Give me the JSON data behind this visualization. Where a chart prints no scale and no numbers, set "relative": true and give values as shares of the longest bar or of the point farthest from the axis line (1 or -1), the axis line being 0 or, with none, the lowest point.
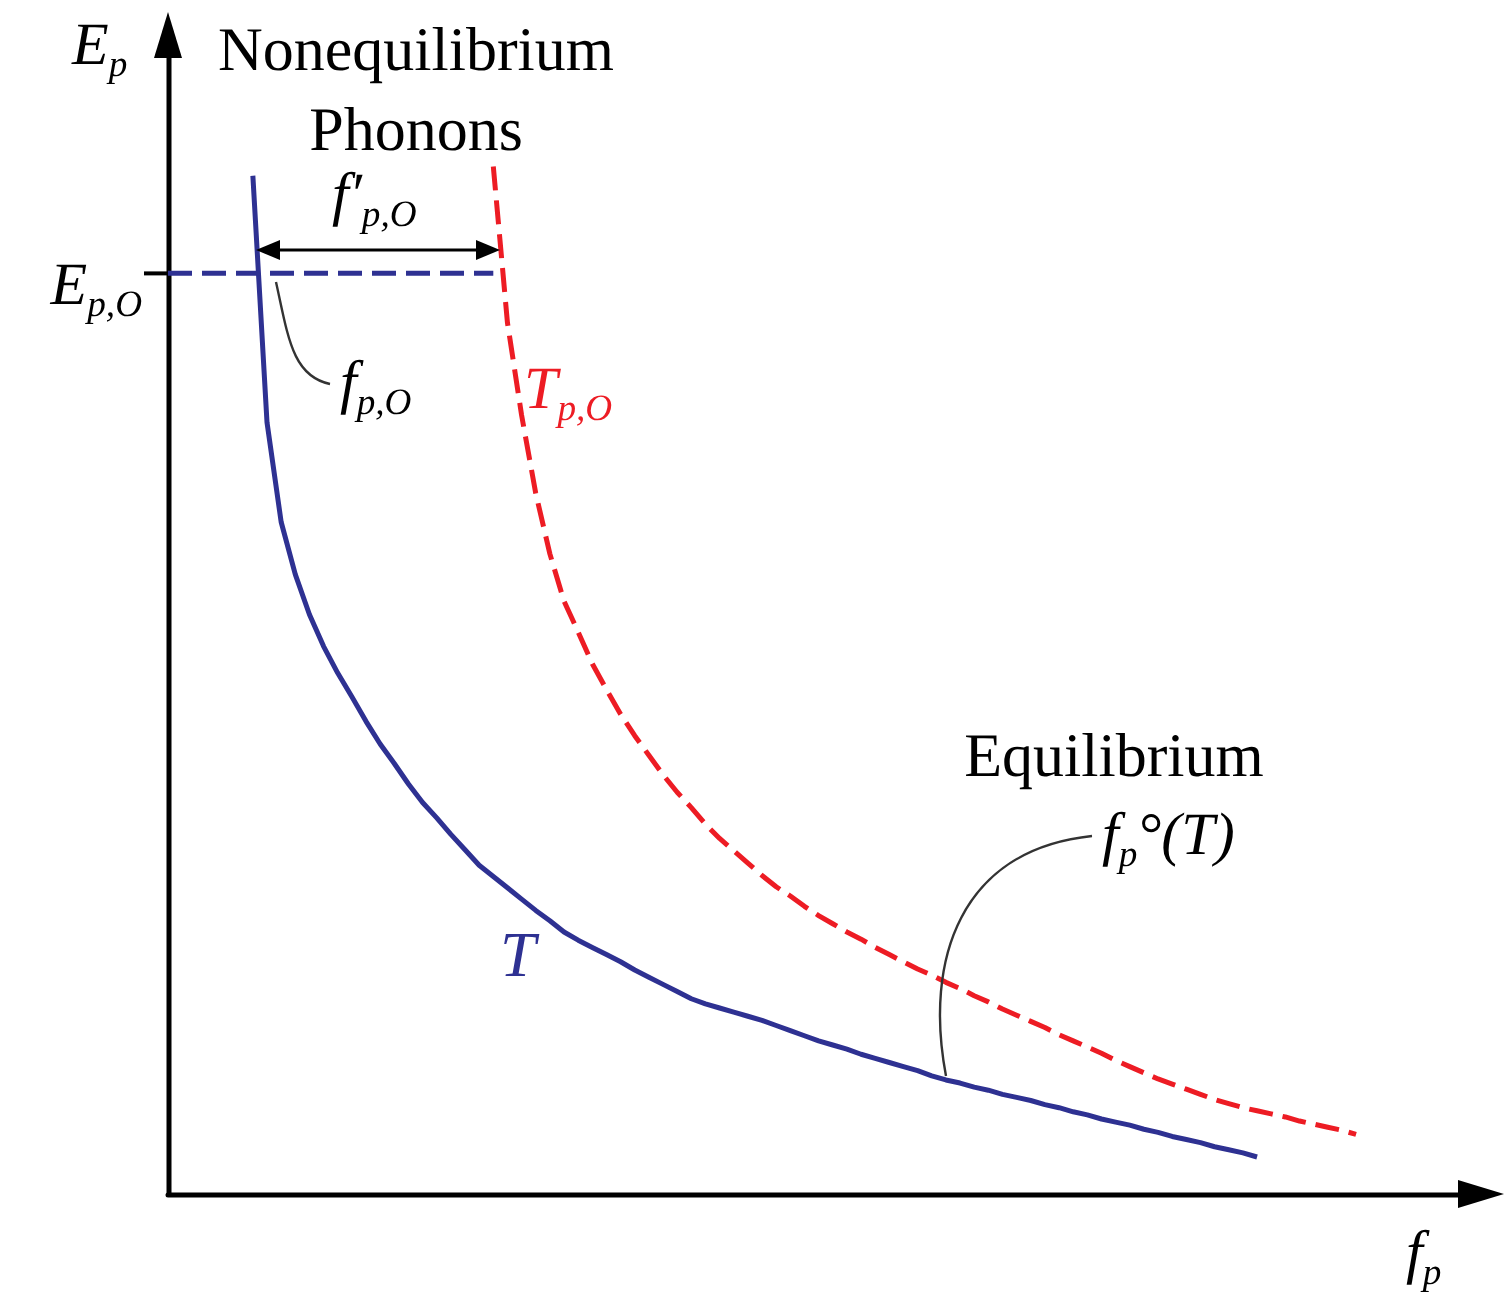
{
  "chart_data": {
    "type": "line",
    "relative": true,
    "marker": "none",
    "xlabel": "f$_{p}$",
    "ylabel": "E$_{p}$",
    "categories": [
      null,
      null,
      null,
      null,
      null,
      null,
      null,
      null,
      null,
      null,
      null,
      null,
      null,
      null,
      null,
      null,
      null,
      null,
      null,
      null,
      null,
      null,
      null,
      null,
      null,
      null,
      null,
      null,
      null,
      null,
      null,
      null,
      null,
      null,
      null,
      null,
      null,
      null,
      null,
      null,
      null,
      null,
      null,
      null,
      null,
      null,
      null,
      null,
      null,
      null,
      null,
      null,
      null,
      null,
      null,
      null,
      null,
      null,
      null,
      null,
      null,
      null,
      null,
      null,
      null,
      null,
      null,
      null,
      null,
      null,
      null,
      null,
      null,
      null,
      null,
      null,
      null,
      null,
      null,
      null,
      null,
      null,
      null,
      null,
      null
    ],
    "series": [
      {
        "name": "T",
        "color": "#2e3192",
        "values": [
          null,
          null,
          null,
          null,
          null,
          null,
          0.991,
          0.751,
          0.654,
          0.603,
          0.564,
          0.533,
          0.507,
          0.484,
          0.46,
          0.438,
          0.419,
          0.399,
          0.381,
          0.366,
          0.35,
          0.335,
          0.32,
          0.309,
          0.298,
          0.287,
          0.276,
          0.266,
          0.255,
          0.247,
          0.24,
          0.233,
          0.226,
          0.218,
          0.211,
          0.204,
          0.197,
          0.19,
          0.185,
          0.181,
          0.177,
          0.173,
          0.169,
          0.164,
          0.159,
          0.154,
          0.149,
          0.145,
          0.141,
          0.136,
          0.132,
          0.128,
          0.124,
          0.12,
          0.115,
          0.111,
          0.108,
          0.104,
          0.101,
          0.097,
          0.094,
          0.091,
          0.087,
          0.084,
          0.08,
          0.077,
          0.073,
          0.07,
          0.067,
          0.063,
          0.06,
          0.056,
          0.053,
          0.05,
          0.046,
          0.043,
          0.04,
          0.036,
          null,
          null,
          null,
          null,
          null,
          null,
          null
        ]
      },
      {
        "name": "T$_{p,O}$",
        "color": "#ed1c24",
        "line_style": "dashed",
        "values": [
          null,
          null,
          null,
          null,
          null,
          null,
          null,
          null,
          null,
          null,
          null,
          null,
          null,
          null,
          null,
          null,
          null,
          null,
          null,
          null,
          null,
          null,
          null,
          1,
          0.848,
          0.758,
          0.682,
          0.623,
          0.577,
          0.547,
          0.516,
          0.491,
          0.467,
          0.446,
          0.427,
          0.408,
          0.391,
          0.376,
          0.36,
          0.346,
          0.334,
          0.322,
          0.31,
          0.299,
          0.29,
          0.28,
          0.271,
          0.263,
          0.255,
          0.248,
          0.24,
          0.233,
          0.226,
          0.219,
          0.213,
          0.206,
          0.2,
          0.193,
          0.187,
          0.18,
          0.174,
          0.168,
          0.162,
          0.155,
          0.149,
          0.143,
          0.137,
          0.13,
          0.124,
          0.118,
          0.112,
          0.107,
          0.102,
          0.097,
          0.092,
          0.088,
          0.084,
          0.081,
          0.078,
          0.075,
          0.071,
          0.068,
          0.065,
          0.062,
          0.058
        ]
      },
      {
        "color": "#2e3192",
        "line_style": "dashed",
        "values": [
          0.896,
          0.896,
          0.896,
          0.896,
          0.896,
          0.896,
          0.896,
          0.896,
          0.896,
          0.896,
          0.896,
          0.896,
          0.896,
          0.896,
          0.896,
          0.896,
          0.896,
          0.896,
          0.896,
          0.896,
          0.896,
          0.896,
          0.896,
          0.896,
          null,
          null,
          null,
          null,
          null,
          null,
          null,
          null,
          null,
          null,
          null,
          null,
          null,
          null,
          null,
          null,
          null,
          null,
          null,
          null,
          null,
          null,
          null,
          null,
          null,
          null,
          null,
          null,
          null,
          null,
          null,
          null,
          null,
          null,
          null,
          null,
          null,
          null,
          null,
          null,
          null,
          null,
          null,
          null,
          null,
          null,
          null,
          null,
          null,
          null,
          null,
          null,
          null,
          null,
          null,
          null,
          null,
          null,
          null,
          null,
          null
        ]
      }
    ],
    "annotations": [
      "Nonequilibrium\nPhonons",
      "f′$_{p,O}$",
      "f$_{p,O}$",
      "Equilibrium",
      "f$_{p}$°(T)",
      "E$_{p,O}$"
    ]
  }
}
